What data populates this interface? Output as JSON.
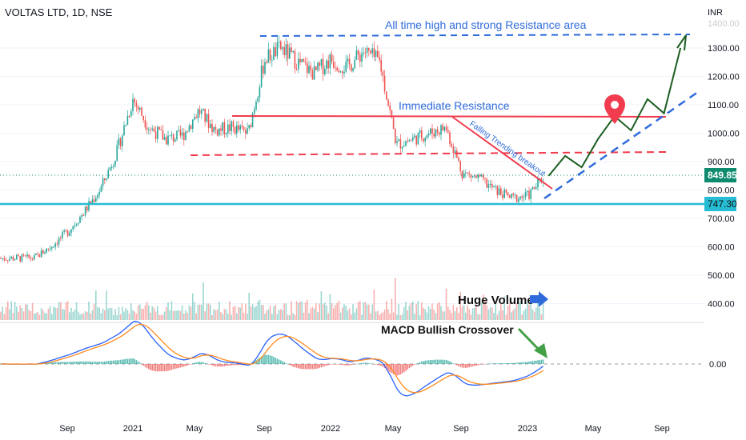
{
  "header": {
    "title": "VOLTAS LTD, 1D, NSE"
  },
  "price_axis": {
    "currency": "INR",
    "ticks": [
      "1300.00",
      "1200.00",
      "1100.00",
      "1000.00",
      "900.00",
      "800.00",
      "700.00",
      "600.00",
      "500.00",
      "400.00"
    ],
    "top_partial_label": "1400.00"
  },
  "macd_axis": {
    "zero_label": "0.00"
  },
  "time_axis": {
    "labels": [
      "Sep",
      "2021",
      "May",
      "Sep",
      "2022",
      "May",
      "Sep",
      "2023",
      "May",
      "Sep"
    ]
  },
  "badges": {
    "last_price": "849.85",
    "support": "747.30"
  },
  "annotations": {
    "ath": "All time high and strong Resistance area",
    "immediate": "Immediate Resistance",
    "falling": "Falling Trending breakout",
    "volume": "Huge Volume",
    "macd": "MACD Bullish Crossover"
  },
  "colors": {
    "up": "#26a69a",
    "down": "#ef5350",
    "resistance": "#f03c4e",
    "support": "#26bcd4",
    "projection_dash": "#2f6bdb",
    "projection_path": "#1b5e20",
    "macd_line": "#2962ff",
    "signal_line": "#ff8a1e",
    "last_price_badge": "#0e8a6f"
  },
  "chart_data": {
    "type": "line",
    "symbol": "VOLTAS LTD",
    "interval": "1D",
    "exchange": "NSE",
    "price_series": {
      "name": "",
      "x": [
        "2020-07",
        "2020-08",
        "2020-09",
        "2020-10",
        "2020-11",
        "2020-12",
        "2021-01",
        "2021-02",
        "2021-03",
        "2021-04",
        "2021-05",
        "2021-06",
        "2021-07",
        "2021-08",
        "2021-09",
        "2021-10",
        "2021-11",
        "2021-12",
        "2022-01",
        "2022-02",
        "2022-03",
        "2022-04",
        "2022-05",
        "2022-06",
        "2022-07",
        "2022-08",
        "2022-09",
        "2022-10",
        "2022-11",
        "2022-12",
        "2023-01",
        "2023-02"
      ],
      "values": [
        560,
        600,
        650,
        720,
        800,
        930,
        1120,
        1020,
        980,
        990,
        1080,
        1010,
        1020,
        1000,
        1260,
        1300,
        1250,
        1210,
        1260,
        1230,
        1290,
        1250,
        960,
        980,
        1000,
        1020,
        860,
        840,
        800,
        770,
        780,
        850
      ]
    },
    "levels": [
      {
        "label": "All time high and strong Resistance area",
        "value": 1350
      },
      {
        "label": "Immediate Resistance",
        "value": 1055
      },
      {
        "label": "",
        "value": 920
      },
      {
        "label": "",
        "value": 747.3
      }
    ],
    "last_price": 849.85,
    "projection": {
      "x": [
        "2023-02",
        "2023-03",
        "2023-04",
        "2023-05",
        "2023-06",
        "2023-07",
        "2023-08",
        "2023-09",
        "2023-10"
      ],
      "values": [
        850,
        920,
        880,
        980,
        1060,
        1010,
        1120,
        1070,
        1300
      ]
    },
    "ylim": [
      360,
      1420
    ],
    "macd": {
      "zero": 0
    }
  }
}
